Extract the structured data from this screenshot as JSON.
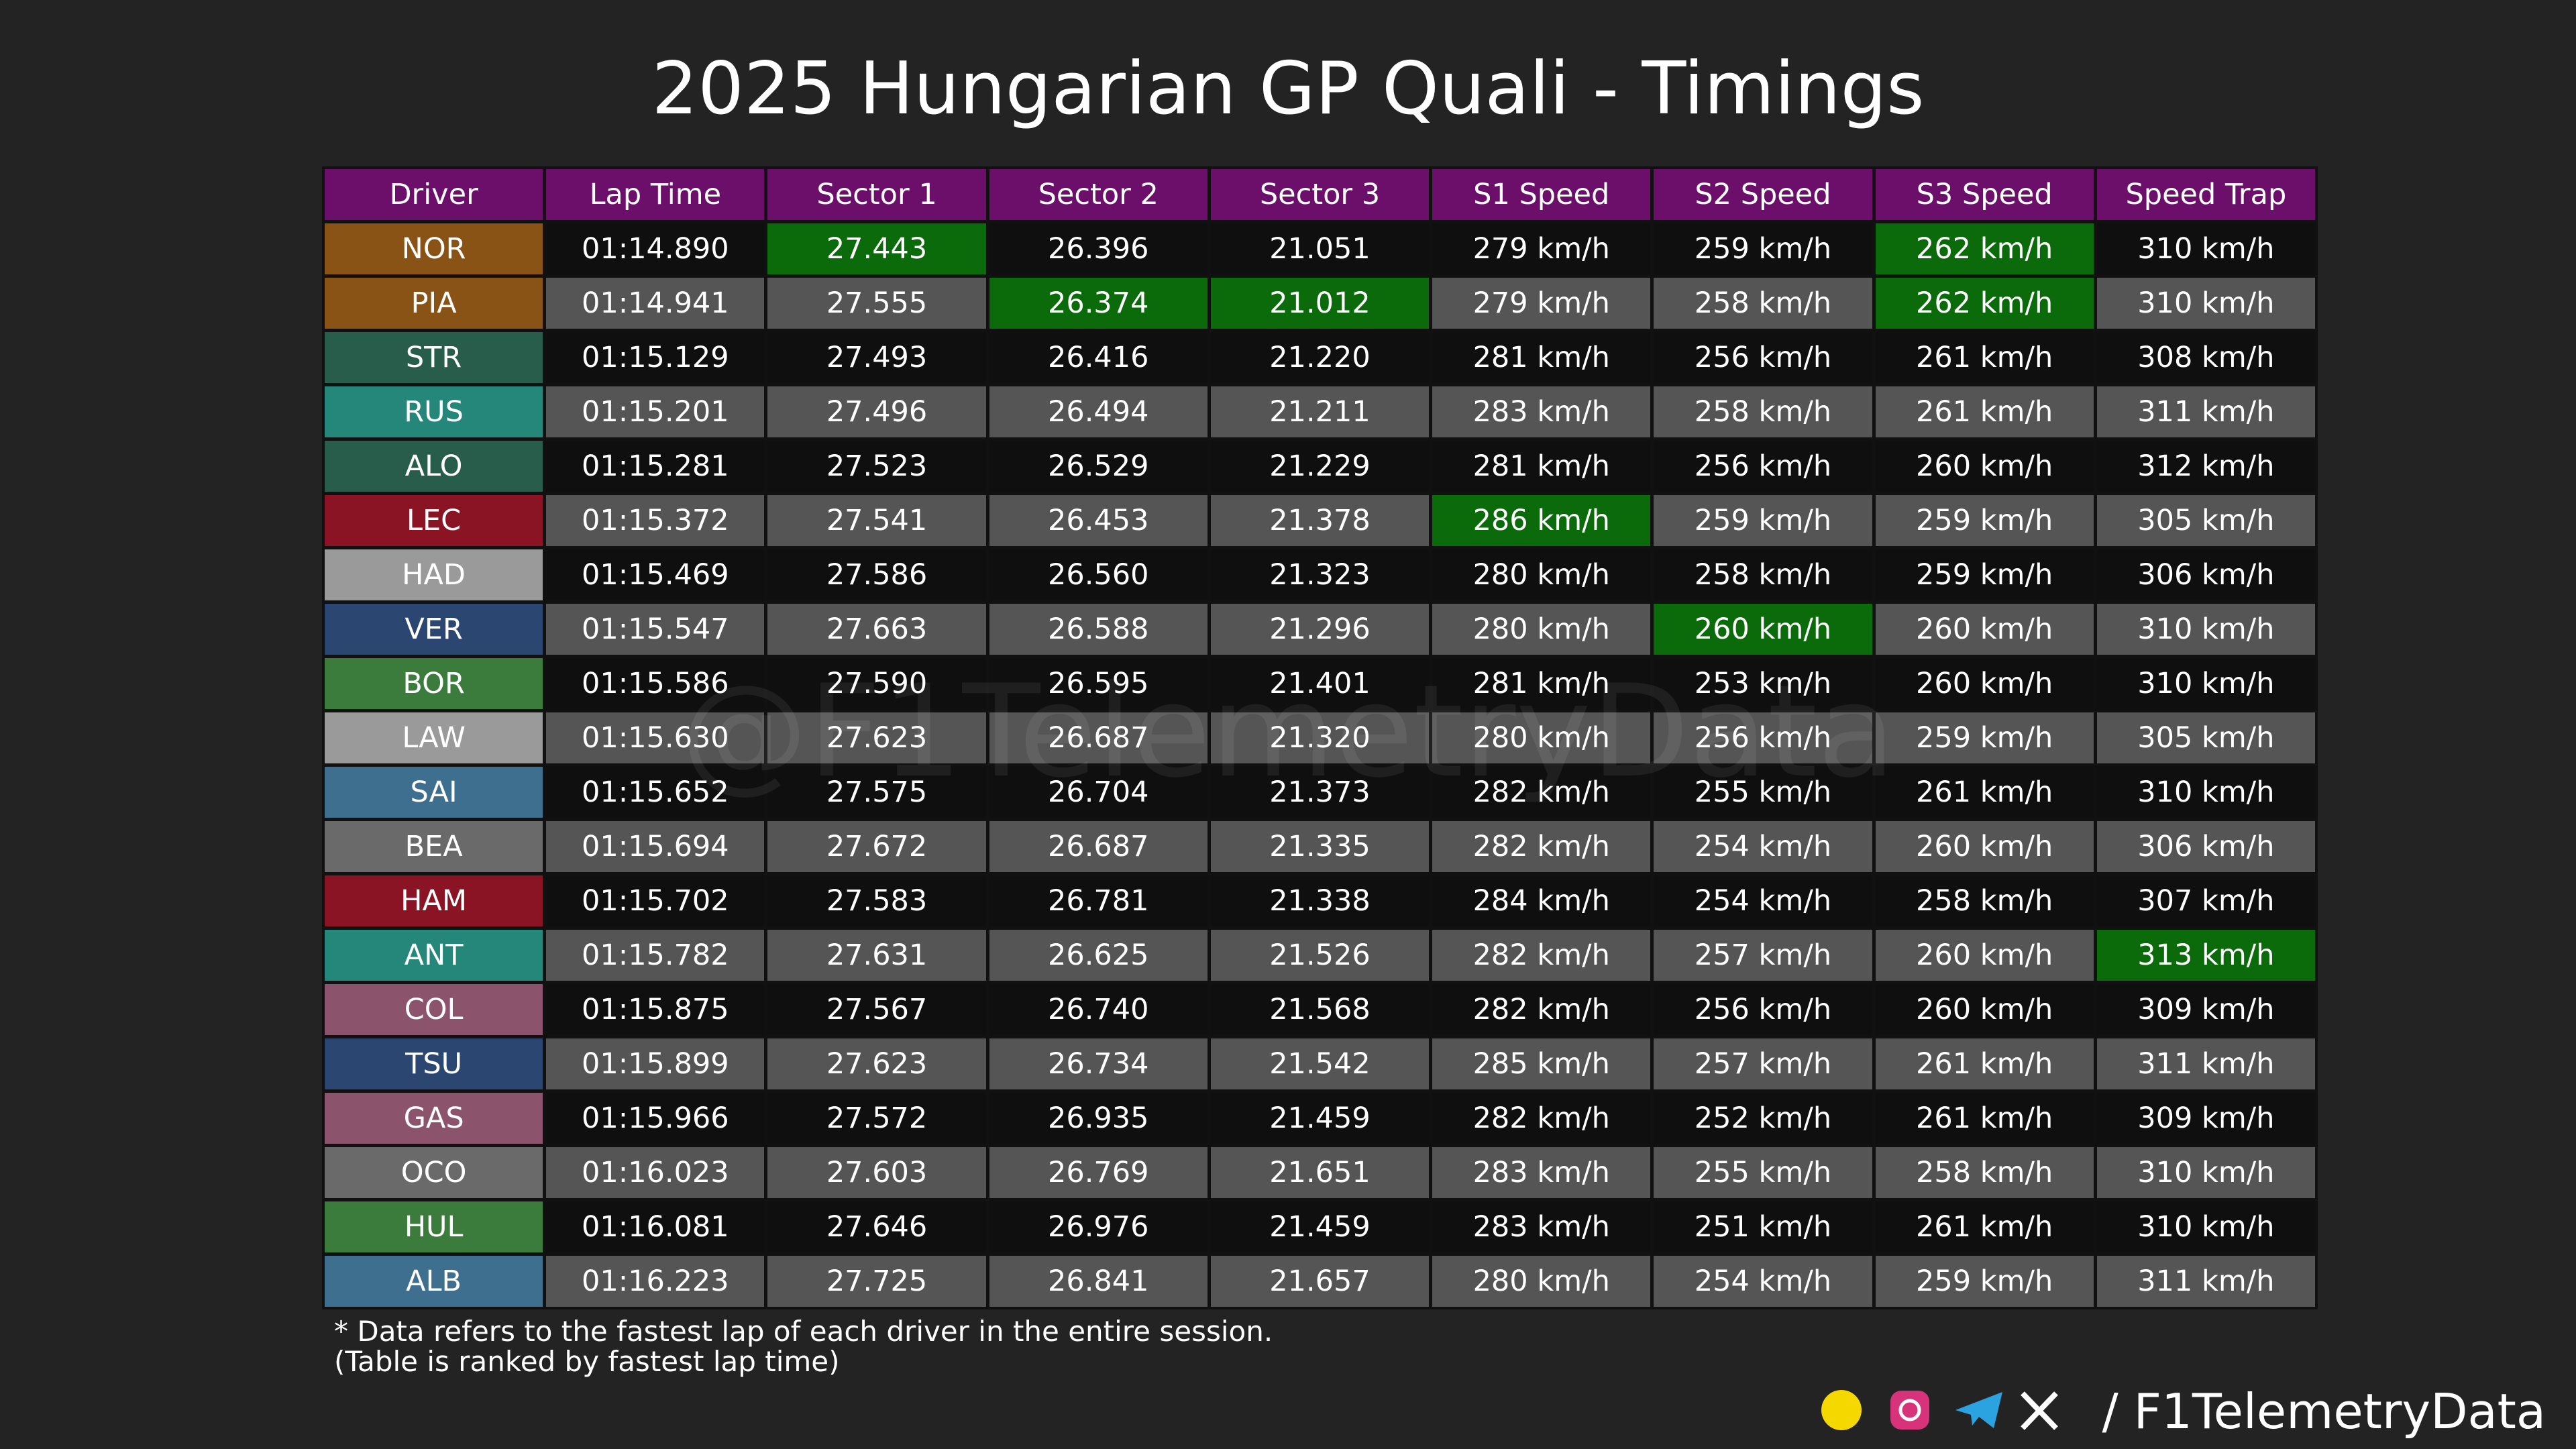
{
  "title": "2025 Hungarian GP Quali - Timings",
  "watermark": "@F1TelemetryData",
  "table": {
    "columns": [
      "Driver",
      "Lap Time",
      "Sector 1",
      "Sector 2",
      "Sector 3",
      "S1 Speed",
      "S2 Speed",
      "S3 Speed",
      "Speed Trap"
    ],
    "rows": [
      [
        "NOR",
        "01:14.890",
        "27.443",
        "26.396",
        "21.051",
        "279 km/h",
        "259 km/h",
        "262 km/h",
        "310 km/h"
      ],
      [
        "PIA",
        "01:14.941",
        "27.555",
        "26.374",
        "21.012",
        "279 km/h",
        "258 km/h",
        "262 km/h",
        "310 km/h"
      ],
      [
        "STR",
        "01:15.129",
        "27.493",
        "26.416",
        "21.220",
        "281 km/h",
        "256 km/h",
        "261 km/h",
        "308 km/h"
      ],
      [
        "RUS",
        "01:15.201",
        "27.496",
        "26.494",
        "21.211",
        "283 km/h",
        "258 km/h",
        "261 km/h",
        "311 km/h"
      ],
      [
        "ALO",
        "01:15.281",
        "27.523",
        "26.529",
        "21.229",
        "281 km/h",
        "256 km/h",
        "260 km/h",
        "312 km/h"
      ],
      [
        "LEC",
        "01:15.372",
        "27.541",
        "26.453",
        "21.378",
        "286 km/h",
        "259 km/h",
        "259 km/h",
        "305 km/h"
      ],
      [
        "HAD",
        "01:15.469",
        "27.586",
        "26.560",
        "21.323",
        "280 km/h",
        "258 km/h",
        "259 km/h",
        "306 km/h"
      ],
      [
        "VER",
        "01:15.547",
        "27.663",
        "26.588",
        "21.296",
        "280 km/h",
        "260 km/h",
        "260 km/h",
        "310 km/h"
      ],
      [
        "BOR",
        "01:15.586",
        "27.590",
        "26.595",
        "21.401",
        "281 km/h",
        "253 km/h",
        "260 km/h",
        "310 km/h"
      ],
      [
        "LAW",
        "01:15.630",
        "27.623",
        "26.687",
        "21.320",
        "280 km/h",
        "256 km/h",
        "259 km/h",
        "305 km/h"
      ],
      [
        "SAI",
        "01:15.652",
        "27.575",
        "26.704",
        "21.373",
        "282 km/h",
        "255 km/h",
        "261 km/h",
        "310 km/h"
      ],
      [
        "BEA",
        "01:15.694",
        "27.672",
        "26.687",
        "21.335",
        "282 km/h",
        "254 km/h",
        "260 km/h",
        "306 km/h"
      ],
      [
        "HAM",
        "01:15.702",
        "27.583",
        "26.781",
        "21.338",
        "284 km/h",
        "254 km/h",
        "258 km/h",
        "307 km/h"
      ],
      [
        "ANT",
        "01:15.782",
        "27.631",
        "26.625",
        "21.526",
        "282 km/h",
        "257 km/h",
        "260 km/h",
        "313 km/h"
      ],
      [
        "COL",
        "01:15.875",
        "27.567",
        "26.740",
        "21.568",
        "282 km/h",
        "256 km/h",
        "260 km/h",
        "309 km/h"
      ],
      [
        "TSU",
        "01:15.899",
        "27.623",
        "26.734",
        "21.542",
        "285 km/h",
        "257 km/h",
        "261 km/h",
        "311 km/h"
      ],
      [
        "GAS",
        "01:15.966",
        "27.572",
        "26.935",
        "21.459",
        "282 km/h",
        "252 km/h",
        "261 km/h",
        "309 km/h"
      ],
      [
        "OCO",
        "01:16.023",
        "27.603",
        "26.769",
        "21.651",
        "283 km/h",
        "255 km/h",
        "258 km/h",
        "310 km/h"
      ],
      [
        "HUL",
        "01:16.081",
        "27.646",
        "26.976",
        "21.459",
        "283 km/h",
        "251 km/h",
        "261 km/h",
        "310 km/h"
      ],
      [
        "ALB",
        "01:16.223",
        "27.725",
        "26.841",
        "21.657",
        "280 km/h",
        "254 km/h",
        "259 km/h",
        "311 km/h"
      ]
    ],
    "driver_colors": [
      "#8a5316",
      "#8a5316",
      "#275d4a",
      "#25867a",
      "#275d4a",
      "#8a1424",
      "#9a9a9a",
      "#2b4670",
      "#3b7b3b",
      "#9a9a9a",
      "#3e6f8e",
      "#6a6a6a",
      "#8a1424",
      "#25867a",
      "#8c546c",
      "#2b4670",
      "#8c546c",
      "#6a6a6a",
      "#3b7b3b",
      "#3e6f8e"
    ],
    "header_color": "#6b0f6b",
    "row_colors": [
      "#0f0f0f",
      "#555555"
    ],
    "highlight_color": "#0b6b0b",
    "highlights": [
      [
        0,
        2
      ],
      [
        0,
        7
      ],
      [
        1,
        3
      ],
      [
        1,
        4
      ],
      [
        1,
        7
      ],
      [
        5,
        5
      ],
      [
        7,
        6
      ],
      [
        13,
        8
      ]
    ]
  },
  "notes": [
    "* Data refers to the fastest lap of each driver in the entire session.",
    "(Table is ranked by fastest lap time)"
  ],
  "brand": "/ F1TelemetryData"
}
